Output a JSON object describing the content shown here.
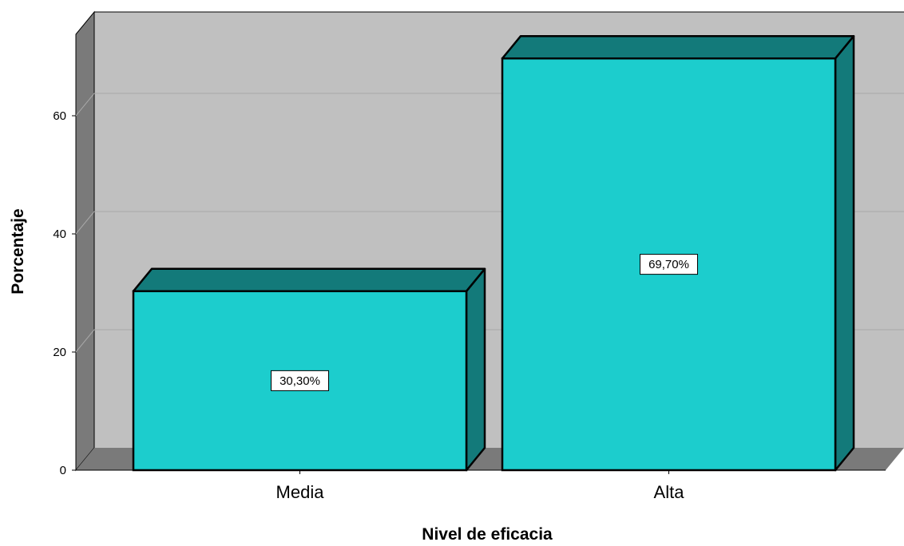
{
  "chart_data": {
    "type": "bar",
    "style": "3d",
    "title": "",
    "xlabel": "Nivel de eficacia",
    "ylabel": "Porcentaje",
    "categories": [
      "Media",
      "Alta"
    ],
    "values": [
      30.3,
      69.7
    ],
    "data_labels": [
      "30,30%",
      "69,70%"
    ],
    "ylim": [
      0,
      75
    ],
    "yticks": [
      0,
      20,
      40,
      60
    ],
    "grid": true,
    "legend": "none",
    "colors": {
      "bar_front": "#1ccdcd",
      "bar_side": "#137a7a",
      "back_wall": "#c0c0c0",
      "side_wall": "#7a7a7a",
      "floor": "#7a7a7a",
      "gridline": "#a8a8a8"
    }
  }
}
